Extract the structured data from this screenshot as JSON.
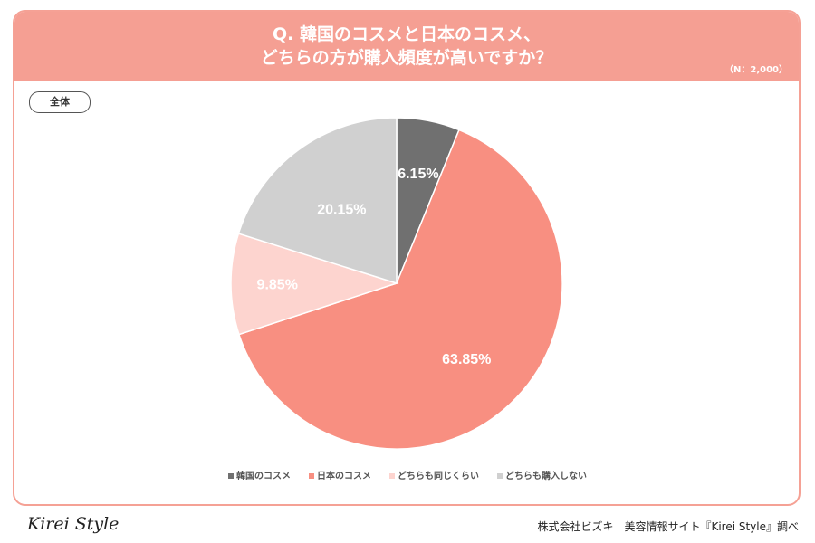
{
  "header": {
    "title_line1": "Q. 韓国のコスメと日本のコスメ、",
    "title_line2": "どちらの方が購入頻度が高いですか？",
    "n": "（N：2,000）"
  },
  "segment_tag": "全体",
  "chart_data": {
    "type": "pie",
    "title": "Q. 韓国のコスメと日本のコスメ、どちらの方が購入頻度が高いですか？",
    "categories": [
      "韓国のコスメ",
      "日本のコスメ",
      "どちらも同じくらい",
      "どちらも購入しない"
    ],
    "values": [
      6.15,
      63.85,
      9.85,
      20.15
    ],
    "labels": [
      "6.15%",
      "63.85%",
      "9.85%",
      "20.15%"
    ],
    "colors": [
      "#707070",
      "#f88f81",
      "#fdd4cf",
      "#d0d0d0"
    ],
    "legend": "bottom"
  },
  "footer": {
    "logo": "Kirei Style",
    "credit": "株式会社ビズキ　美容情報サイト『Kirei Style』調べ"
  }
}
